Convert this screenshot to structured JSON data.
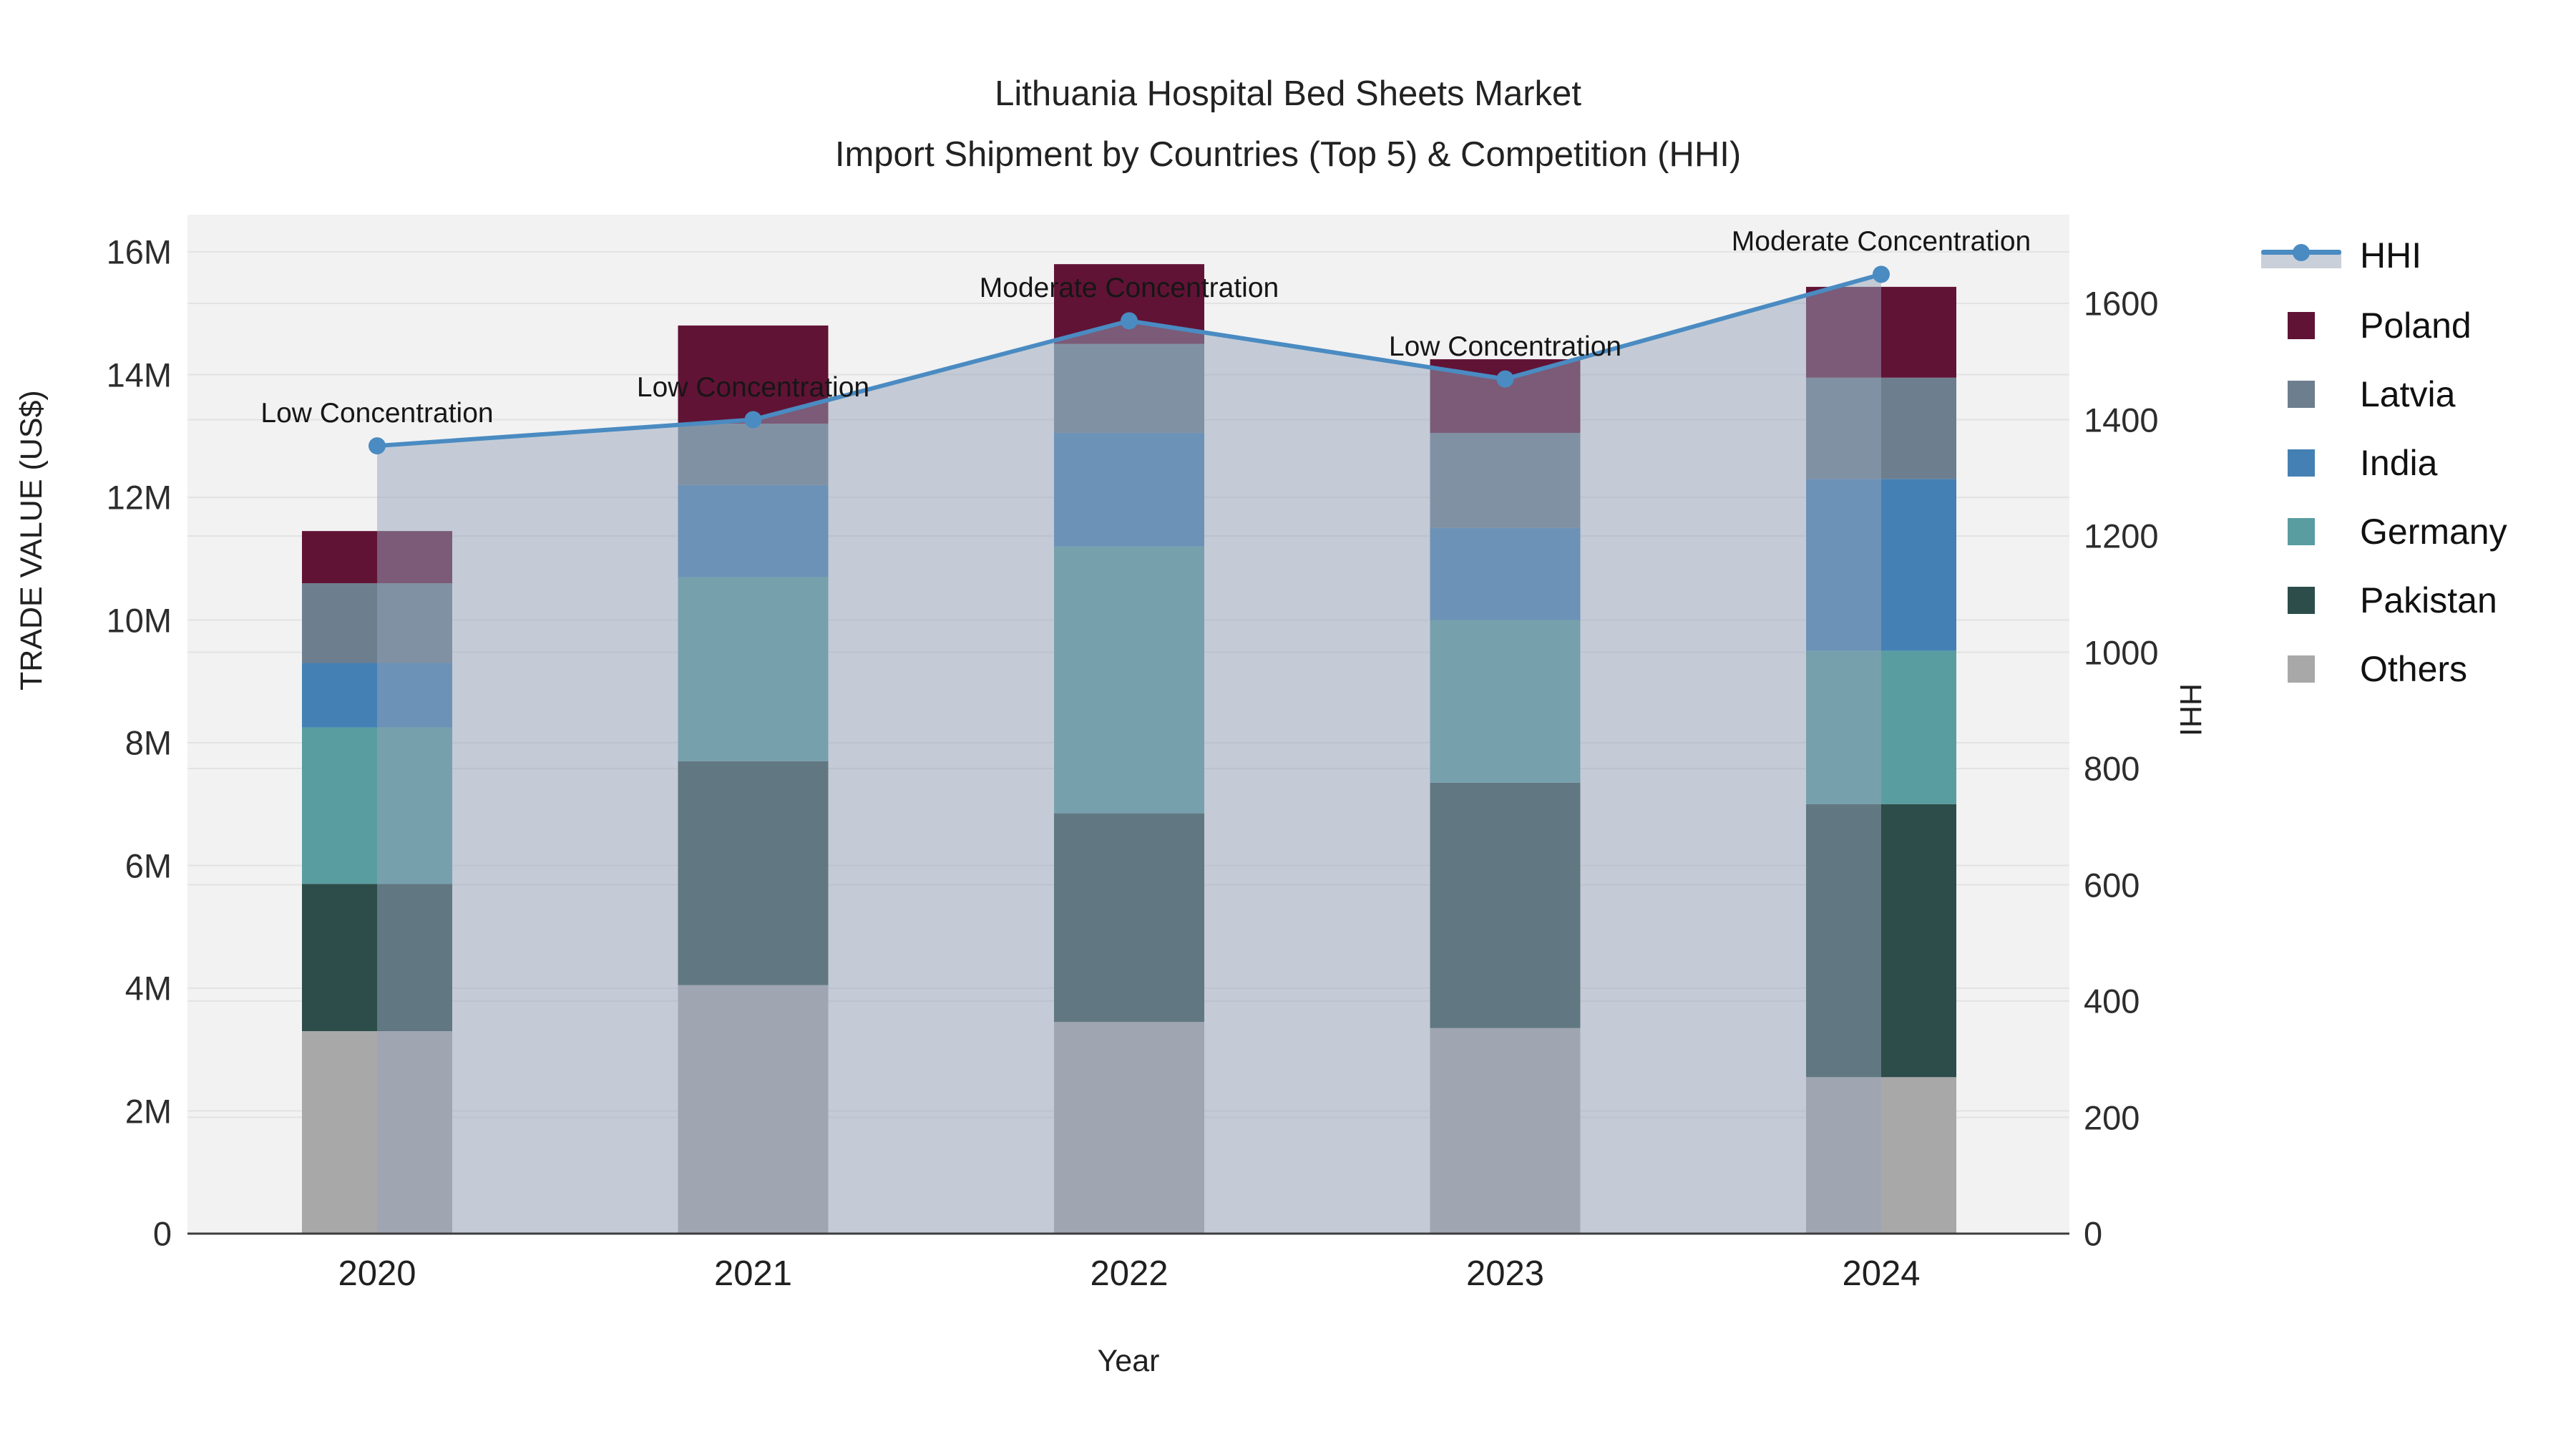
{
  "title": {
    "line1": "Lithuania Hospital Bed Sheets Market",
    "line2": "Import Shipment by Countries (Top 5) & Competition (HHI)"
  },
  "colors": {
    "plot_bg": "#f2f2f2",
    "gridline": "#e3e3e3",
    "axis_line": "#3d3d3d",
    "hhi_line": "#4a8bc2",
    "hhi_fill": "rgba(150,163,185,0.5)",
    "legend_band": "#c9d0da",
    "poland": "#611335",
    "latvia": "#6d7e8e",
    "india": "#4480b4",
    "germany": "#599da0",
    "pakistan": "#2d4d4a",
    "others": "#a8a8a8"
  },
  "chart_data": {
    "type": "bar+line",
    "title": "Lithuania Hospital Bed Sheets Market — Import Shipment by Countries (Top 5) & Competition (HHI)",
    "categories": [
      "2020",
      "2021",
      "2022",
      "2023",
      "2024"
    ],
    "stack_order_note": "series listed bottom-to-top of stack; values in millions US$",
    "series": [
      {
        "name": "Others",
        "color_key": "others",
        "values": [
          3.3,
          4.05,
          3.45,
          3.35,
          2.55
        ]
      },
      {
        "name": "Pakistan",
        "color_key": "pakistan",
        "values": [
          2.4,
          3.65,
          3.4,
          4.0,
          4.45
        ]
      },
      {
        "name": "Germany",
        "color_key": "germany",
        "values": [
          2.55,
          3.0,
          4.35,
          2.65,
          2.5
        ]
      },
      {
        "name": "India",
        "color_key": "india",
        "values": [
          1.05,
          1.5,
          1.85,
          1.5,
          2.8
        ]
      },
      {
        "name": "Latvia",
        "color_key": "latvia",
        "values": [
          1.3,
          1.0,
          1.45,
          1.55,
          1.65
        ]
      },
      {
        "name": "Poland",
        "color_key": "poland",
        "values": [
          0.85,
          1.6,
          1.3,
          1.2,
          1.48
        ]
      }
    ],
    "line_series": {
      "name": "HHI",
      "color_key": "hhi_line",
      "values": [
        1355,
        1400,
        1570,
        1470,
        1650
      ]
    },
    "annotations": [
      {
        "category": "2020",
        "label": "Low Concentration"
      },
      {
        "category": "2021",
        "label": "Low Concentration"
      },
      {
        "category": "2022",
        "label": "Moderate Concentration"
      },
      {
        "category": "2023",
        "label": "Low Concentration"
      },
      {
        "category": "2024",
        "label": "Moderate Concentration"
      }
    ],
    "y_left": {
      "title": "TRADE VALUE (US$)",
      "ticks": [
        "0",
        "2M",
        "4M",
        "6M",
        "8M",
        "10M",
        "12M",
        "14M",
        "16M"
      ],
      "tick_values_m": [
        0,
        2,
        4,
        6,
        8,
        10,
        12,
        14,
        16
      ],
      "range_m": [
        0,
        16.6
      ]
    },
    "y_right": {
      "title": "HHI",
      "ticks": [
        "0",
        "200",
        "400",
        "600",
        "800",
        "1000",
        "1200",
        "1400",
        "1600"
      ],
      "tick_values": [
        0,
        200,
        400,
        600,
        800,
        1000,
        1200,
        1400,
        1600
      ],
      "range": [
        0,
        1752
      ]
    },
    "x_title": "Year",
    "grid": true,
    "legend_position": "right"
  },
  "legend": {
    "items": [
      {
        "label": "HHI",
        "type": "line",
        "color_key": "hhi_line"
      },
      {
        "label": "Poland",
        "type": "swatch",
        "color_key": "poland"
      },
      {
        "label": "Latvia",
        "type": "swatch",
        "color_key": "latvia"
      },
      {
        "label": "India",
        "type": "swatch",
        "color_key": "india"
      },
      {
        "label": "Germany",
        "type": "swatch",
        "color_key": "germany"
      },
      {
        "label": "Pakistan",
        "type": "swatch",
        "color_key": "pakistan"
      },
      {
        "label": "Others",
        "type": "swatch",
        "color_key": "others"
      }
    ]
  }
}
